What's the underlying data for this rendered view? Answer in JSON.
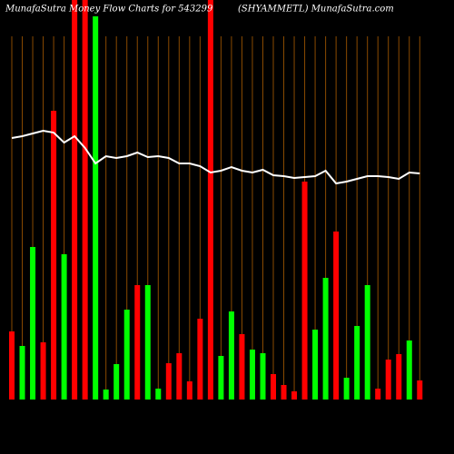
{
  "chart_data": {
    "type": "bar",
    "title": "MunafaSutra  Money Flow  Charts for 543299",
    "subtitle": "(SHYAMMETL) MunafaSutra.com",
    "values": [
      75,
      59,
      168,
      63,
      318,
      160,
      460,
      460,
      422,
      11,
      39,
      99,
      126,
      126,
      12,
      40,
      51,
      20,
      89,
      460,
      48,
      97,
      72,
      55,
      51,
      28,
      16,
      9,
      240,
      77,
      134,
      185,
      24,
      81,
      126,
      12,
      44,
      50,
      65,
      21
    ],
    "bar_colors": [
      "#ff0000",
      "#00ff00",
      "#00ff00",
      "#ff0000",
      "#ff0000",
      "#00ff00",
      "#ff0000",
      "#ff0000",
      "#00ff00",
      "#00ff00",
      "#00ff00",
      "#00ff00",
      "#ff0000",
      "#00ff00",
      "#00ff00",
      "#ff0000",
      "#ff0000",
      "#ff0000",
      "#ff0000",
      "#ff0000",
      "#00ff00",
      "#00ff00",
      "#ff0000",
      "#00ff00",
      "#00ff00",
      "#ff0000",
      "#ff0000",
      "#ff0000",
      "#ff0000",
      "#00ff00",
      "#00ff00",
      "#ff0000",
      "#00ff00",
      "#00ff00",
      "#00ff00",
      "#ff0000",
      "#ff0000",
      "#ff0000",
      "#00ff00",
      "#ff0000"
    ],
    "line": {
      "color": "#ffffff",
      "values": [
        288,
        290,
        293,
        296,
        294,
        283,
        290,
        277,
        260,
        268,
        266,
        268,
        272,
        267,
        268,
        266,
        260,
        260,
        257,
        250,
        252,
        256,
        252,
        250,
        253,
        247,
        246,
        244,
        245,
        246,
        252,
        238,
        240,
        243,
        246,
        246,
        245,
        243,
        250,
        249
      ]
    },
    "ylim": [
      0,
      440
    ],
    "grid": true,
    "grid_color": "#8a4a00"
  }
}
